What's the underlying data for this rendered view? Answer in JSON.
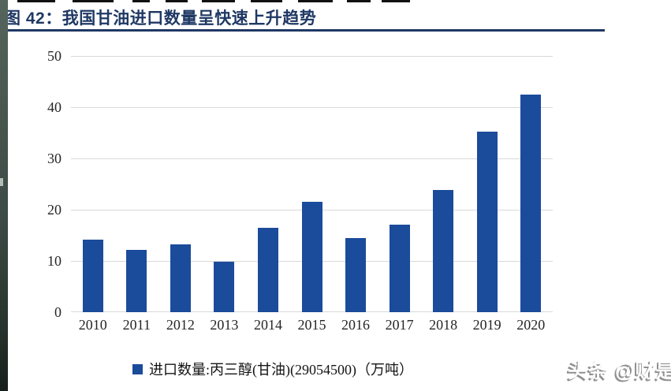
{
  "page": {
    "title_prefix": "图 42：",
    "title_text": "我国甘油进口数量呈快速上升趋势",
    "watermark": "头条 @财是"
  },
  "colors": {
    "title_navy": "#1F3864",
    "bar_blue": "#1B4B9B",
    "gridline_gray": "#D9D9D9",
    "axis_text": "#262626",
    "watermark_white": "#FFFFFF"
  },
  "legend": {
    "swatch_icon": "blue-square-icon",
    "label": "进口数量:丙三醇(甘油)(29054500)（万吨）"
  },
  "chart_data": {
    "type": "bar",
    "title": "图 42：我国甘油进口数量呈快速上升趋势",
    "categories": [
      "2010",
      "2011",
      "2012",
      "2013",
      "2014",
      "2015",
      "2016",
      "2017",
      "2018",
      "2019",
      "2020"
    ],
    "values": [
      14.2,
      12.1,
      13.2,
      9.9,
      16.4,
      21.5,
      14.5,
      17.1,
      23.8,
      35.2,
      42.5
    ],
    "series_name": "进口数量:丙三醇(甘油)(29054500)（万吨）",
    "xlabel": "",
    "ylabel": "",
    "ylim": [
      0,
      50
    ],
    "yticks": [
      0,
      10,
      20,
      30,
      40,
      50
    ],
    "grid": true,
    "legend_position": "bottom",
    "bar_color": "#1B4B9B"
  }
}
